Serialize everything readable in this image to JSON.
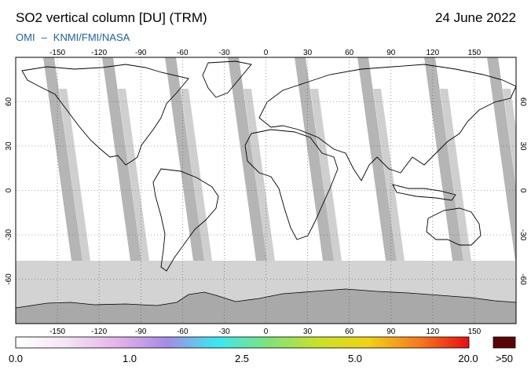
{
  "header": {
    "title": "SO2 vertical column [DU] (TRM)",
    "date": "24 June 2022",
    "credit_left": "OMI",
    "credit_sep": "–",
    "credit_right": "KNMI/FMI/NASA"
  },
  "axes": {
    "lon_ticks": [
      "-150",
      "-120",
      "-90",
      "-60",
      "-30",
      "0",
      "30",
      "60",
      "90",
      "120",
      "150"
    ],
    "lon_values": [
      -150,
      -120,
      -90,
      -60,
      -30,
      0,
      30,
      60,
      90,
      120,
      150
    ],
    "lat_ticks": [
      "60",
      "30",
      "0",
      "-30",
      "-60"
    ],
    "lat_values": [
      60,
      30,
      0,
      -30,
      -60
    ],
    "lon_range": [
      -180,
      180
    ],
    "lat_range": [
      -90,
      90
    ],
    "grid": true
  },
  "colorbar": {
    "labels": [
      "0.0",
      "1.0",
      "2.5",
      "5.0",
      "20.0"
    ],
    "overflow_label": ">50",
    "colors": [
      "#ffffff",
      "#f4e6f6",
      "#e6b3ea",
      "#a58ce6",
      "#39e8f2",
      "#7de37a",
      "#c8e229",
      "#f2d216",
      "#f57c1c",
      "#e80f0f"
    ],
    "overflow_color": "#5a0505"
  },
  "colors": {
    "background_no_data": "#d3d3d3",
    "orbit_gap": "#b5b5b5",
    "antarctica": "#a9a9a9",
    "coastline": "#000000"
  }
}
